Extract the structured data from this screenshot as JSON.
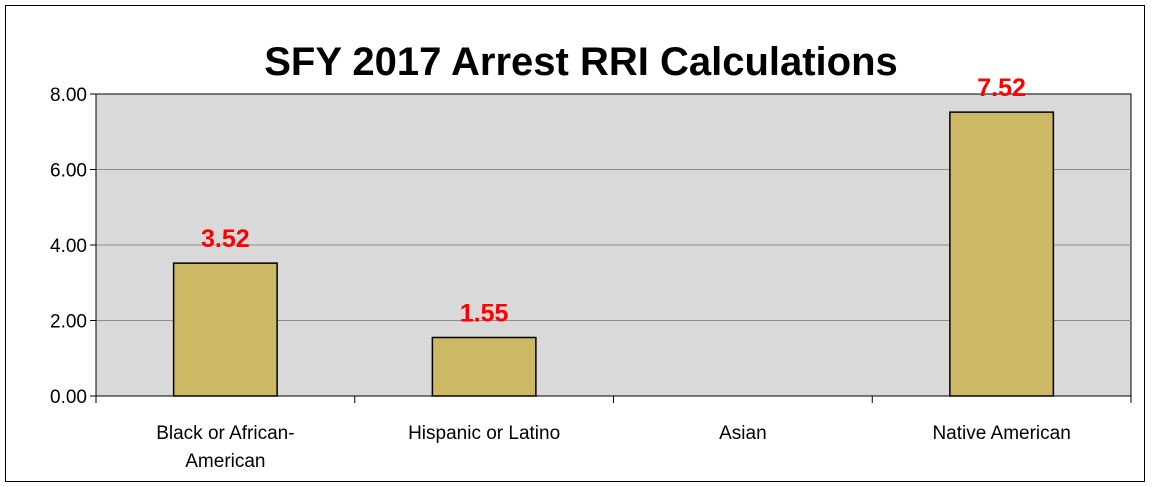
{
  "chart_data": {
    "type": "bar",
    "title": "SFY 2017 Arrest RRI Calculations",
    "categories": [
      [
        "Black or African-",
        "American"
      ],
      [
        "Hispanic or Latino"
      ],
      [
        "Asian"
      ],
      [
        "Native American"
      ]
    ],
    "values": [
      3.52,
      1.55,
      null,
      7.52
    ],
    "data_labels": [
      "3.52",
      "1.55",
      "",
      "7.52"
    ],
    "yticks": [
      "0.00",
      "2.00",
      "4.00",
      "6.00",
      "8.00"
    ],
    "ylim": [
      0,
      8
    ],
    "grid": true,
    "legend": "none",
    "colors": {
      "bar_fill": "#CDB866",
      "bar_stroke": "#000000",
      "plot_bg": "#D9D9D9",
      "grid": "#8C8C8C",
      "data_label": "#FF0000"
    }
  }
}
